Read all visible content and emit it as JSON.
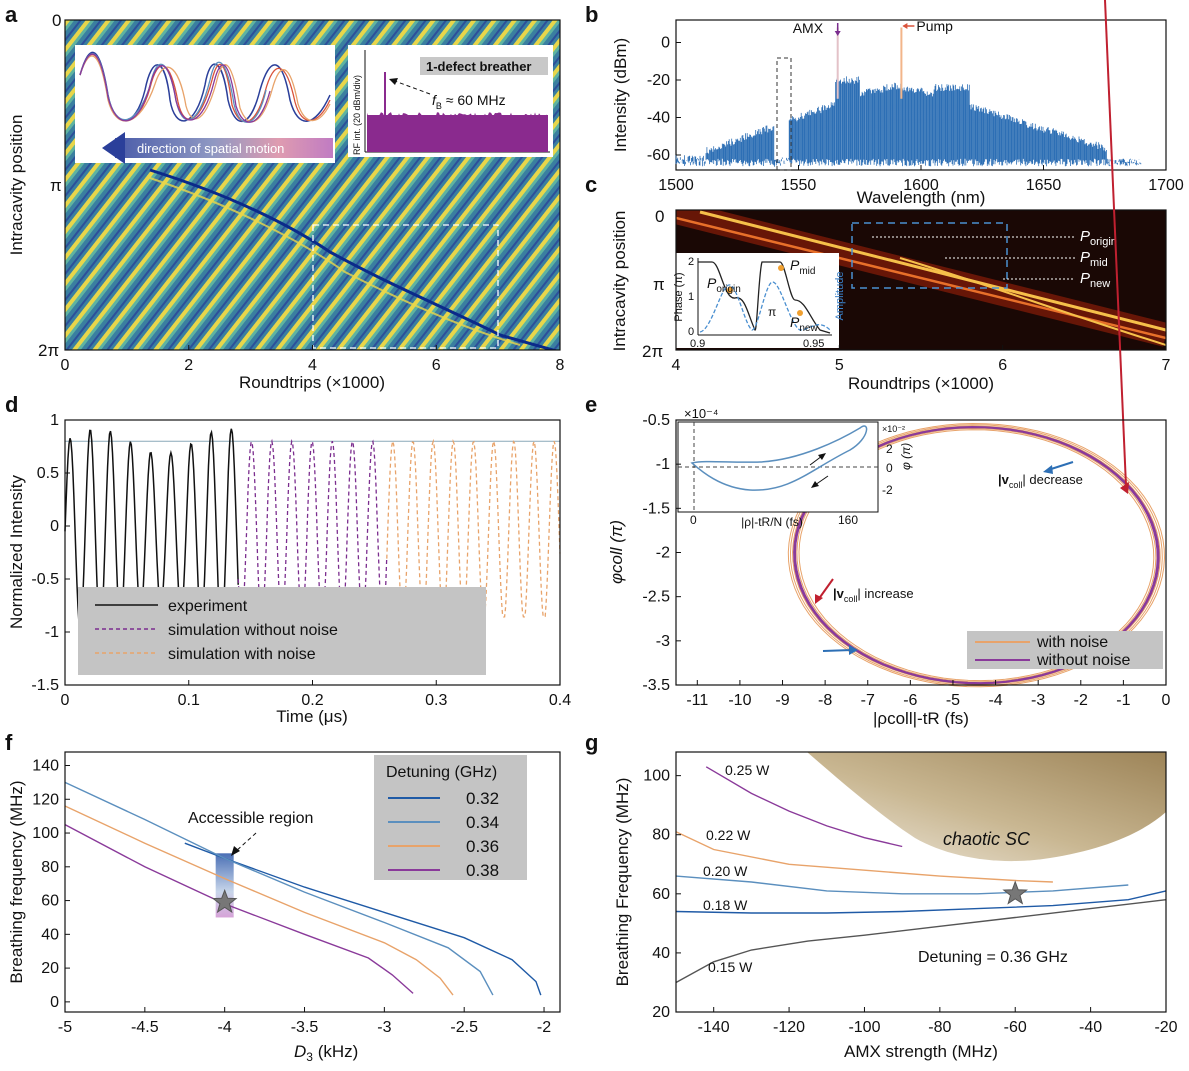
{
  "panel_labels": {
    "a": "a",
    "b": "b",
    "c": "c",
    "d": "d",
    "e": "e",
    "f": "f",
    "g": "g"
  },
  "chart_data": [
    {
      "id": "a",
      "type": "heatmap",
      "xlabel": "Roundtrips (×1000)",
      "ylabel": "Intracavity position",
      "xlim": [
        0,
        8
      ],
      "xticks": [
        "0",
        "2",
        "4",
        "6",
        "8"
      ],
      "yticks": [
        "0",
        "π",
        "2π"
      ],
      "highlight_box": [
        4,
        7
      ],
      "inset_spatial": {
        "label": "direction of spatial motion"
      },
      "inset_rf": {
        "title": "1-defect breather",
        "ylabel": "RF int. (20 dBm/div)",
        "annotation_symbol": "f",
        "annotation_sub": "B",
        "annotation_rest": " ≈ 60 MHz"
      }
    },
    {
      "id": "b",
      "type": "line",
      "xlabel": "Wavelength (nm)",
      "ylabel": "Intensity (dBm)",
      "xlim": [
        1500,
        1700
      ],
      "ylim": [
        -68,
        12
      ],
      "xticks": [
        1500,
        1550,
        1600,
        1650,
        1700
      ],
      "yticks": [
        0,
        -20,
        -40,
        -60
      ],
      "markers": [
        {
          "label": "AMX",
          "x": 1566,
          "color": "#7b2d8e"
        },
        {
          "label": "Pump",
          "x": 1592,
          "color": "#d9533b"
        }
      ],
      "color": "#2d6fb5"
    },
    {
      "id": "c",
      "type": "heatmap",
      "xlabel": "Roundtrips (×1000)",
      "ylabel": "Intracavity position",
      "xlim": [
        4,
        7
      ],
      "xticks": [
        "4",
        "5",
        "6",
        "7"
      ],
      "yticks": [
        "0",
        "π",
        "2π"
      ],
      "labels": [
        {
          "sym": "P",
          "sub": "origin"
        },
        {
          "sym": "P",
          "sub": "mid"
        },
        {
          "sym": "P",
          "sub": "new"
        }
      ],
      "inset": {
        "ylabel": "Phase (π)",
        "ylabel2": "Amplitude",
        "xticks": [
          "0.9",
          "0.95"
        ],
        "yticks": [
          "2",
          "1",
          "0"
        ],
        "pi_label": "π",
        "points": [
          {
            "sym": "P",
            "sub": "origin"
          },
          {
            "sym": "P",
            "sub": "mid"
          },
          {
            "sym": "P",
            "sub": "new"
          }
        ]
      }
    },
    {
      "id": "d",
      "type": "line",
      "xlabel": "Time (μs)",
      "ylabel": "Normalized Intensity",
      "xlim": [
        0,
        0.4
      ],
      "ylim": [
        -1.5,
        1
      ],
      "xticks": [
        0,
        0.1,
        0.2,
        0.3,
        0.4
      ],
      "yticks": [
        1,
        0.5,
        0,
        -0.5,
        -1,
        -1.5
      ],
      "ref_line": 0.8,
      "series": [
        {
          "name": "experiment",
          "color": "#111111",
          "style": "solid"
        },
        {
          "name": "simulation without noise",
          "color": "#7b2d8e",
          "style": "dashed"
        },
        {
          "name": "simulation with noise",
          "color": "#e8a36a",
          "style": "dashed"
        }
      ]
    },
    {
      "id": "e",
      "type": "line",
      "xlabel": "|ρcoll|-tR (fs)",
      "ylabel": "φcoll (π)",
      "xlim": [
        -11.5,
        0
      ],
      "ylim": [
        -3.5,
        -0.5
      ],
      "xticks": [
        -11,
        -10,
        -9,
        -8,
        -7,
        -6,
        -5,
        -4,
        -3,
        -2,
        -1,
        0
      ],
      "yticks": [
        -0.5,
        -1,
        -1.5,
        -2,
        -2.5,
        -3,
        -3.5
      ],
      "annotations": [
        "decrease",
        "increase"
      ],
      "annotation_prefix": "|v",
      "annotation_sub": "coll",
      "annotation_suffix": "|",
      "series": [
        {
          "name": "with noise",
          "color": "#e8a36a"
        },
        {
          "name": "without noise",
          "color": "#8a3a9a"
        }
      ],
      "inset": {
        "xlabel": "|ρ|-tR/N (fs)",
        "ylabel": "φ (π)",
        "xscale": "×10⁻⁴",
        "yscale": "×10⁻²",
        "xticks": [
          "0",
          "160"
        ],
        "yticks": [
          "2",
          "0",
          "-2"
        ]
      }
    },
    {
      "id": "f",
      "type": "line",
      "xlabel": "D3 (kHz)",
      "ylabel": "Breathing frequency (MHz)",
      "xlim": [
        -5,
        -1.9
      ],
      "ylim": [
        -6,
        148
      ],
      "xticks": [
        "-5",
        "-4.5",
        "-4",
        "-3.5",
        "-3",
        "-2.5",
        "-2"
      ],
      "yticks": [
        0,
        20,
        40,
        60,
        80,
        100,
        120,
        140
      ],
      "legend_title": "Detuning (GHz)",
      "annotation": "Accessible region",
      "accessible_region": {
        "x": -4,
        "y": [
          50,
          88
        ]
      },
      "star": {
        "x": -4,
        "y": 59
      },
      "series": [
        {
          "name": "0.32",
          "color": "#1f5aa6",
          "x": [
            -4.25,
            -4,
            -3.5,
            -3,
            -2.5,
            -2.2,
            -2.05,
            -2.02
          ],
          "y": [
            94,
            85,
            68,
            53,
            38,
            25,
            12,
            4
          ]
        },
        {
          "name": "0.34",
          "color": "#5b8fbe",
          "x": [
            -5,
            -4.5,
            -4,
            -3.5,
            -3,
            -2.6,
            -2.4,
            -2.32
          ],
          "y": [
            130,
            108,
            85,
            65,
            47,
            32,
            18,
            4
          ]
        },
        {
          "name": "0.36",
          "color": "#e8a36a",
          "x": [
            -5,
            -4.5,
            -4,
            -3.5,
            -3,
            -2.8,
            -2.65,
            -2.57
          ],
          "y": [
            116,
            94,
            73,
            53,
            35,
            25,
            14,
            4
          ]
        },
        {
          "name": "0.38",
          "color": "#8a3a9a",
          "x": [
            -5,
            -4.5,
            -4,
            -3.5,
            -3.1,
            -2.95,
            -2.82
          ],
          "y": [
            105,
            80,
            58,
            40,
            26,
            16,
            5
          ]
        }
      ]
    },
    {
      "id": "g",
      "type": "line",
      "xlabel": "AMX strength (MHz)",
      "ylabel": "Breathing Frequency (MHz)",
      "xlim": [
        -150,
        -20
      ],
      "ylim": [
        20,
        108
      ],
      "xticks": [
        "-140",
        "-120",
        "-100",
        "-80",
        "-60",
        "-40",
        "-20"
      ],
      "yticks": [
        20,
        40,
        60,
        80,
        100
      ],
      "region_label": "chaotic SC",
      "annotation": "Detuning = 0.36 GHz",
      "star": {
        "x": -60,
        "y": 60
      },
      "series": [
        {
          "name": "0.25 W",
          "color": "#8a3a9a",
          "x": [
            -142,
            -130,
            -120,
            -110,
            -100,
            -90
          ],
          "y": [
            103,
            94,
            88,
            83,
            79,
            76
          ]
        },
        {
          "name": "0.22 W",
          "color": "#e8a36a",
          "x": [
            -150,
            -140,
            -120,
            -100,
            -80,
            -60,
            -50
          ],
          "y": [
            81,
            75,
            70,
            68,
            66,
            64.5,
            64
          ]
        },
        {
          "name": "0.20 W",
          "color": "#5b8fbe",
          "x": [
            -150,
            -130,
            -110,
            -90,
            -70,
            -50,
            -30
          ],
          "y": [
            66,
            64,
            61,
            60,
            60,
            61,
            63
          ]
        },
        {
          "name": "0.18 W",
          "color": "#1f5aa6",
          "x": [
            -150,
            -130,
            -110,
            -90,
            -70,
            -50,
            -30,
            -20
          ],
          "y": [
            54,
            53.5,
            53.5,
            54,
            55,
            56,
            58,
            61
          ]
        },
        {
          "name": "0.15 W",
          "color": "#555555",
          "x": [
            -150,
            -140,
            -130,
            -115,
            -100,
            -80,
            -60,
            -40,
            -20
          ],
          "y": [
            30,
            37,
            41,
            44,
            46,
            49,
            52,
            55,
            58
          ]
        }
      ]
    }
  ]
}
